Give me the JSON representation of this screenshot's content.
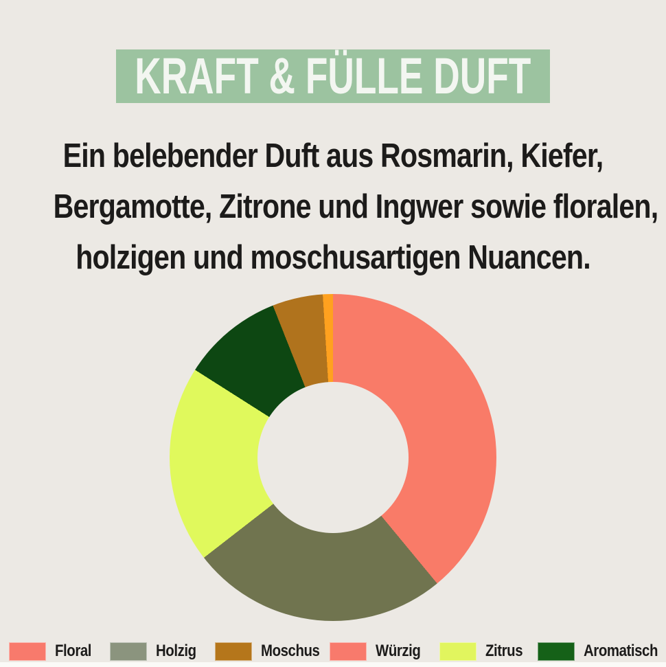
{
  "page": {
    "background": "#ECE9E4",
    "bottom_strip_color": "#FBFAF7",
    "text_color": "#1C1B1A"
  },
  "header": {
    "title": "KRAFT & FÜLLE DUFT",
    "background": "#9CC3A0",
    "text_color": "#F3F6F1"
  },
  "description": {
    "lines": [
      "Ein belebender Duft aus Rosmarin, Kiefer,",
      "Bergamotte, Zitrone und Ingwer sowie floralen,",
      "holzigen und moschusartigen Nuancen."
    ]
  },
  "chart_data": {
    "type": "pie",
    "donut": true,
    "direction": "clockwise",
    "start_angle_deg": 0,
    "inner_radius_ratio": 0.462,
    "title": "",
    "legend_position": "bottom",
    "segments": [
      {
        "label": "Floral",
        "value": 39,
        "color": "#F97B68"
      },
      {
        "label": "Holzig",
        "value": 25.5,
        "color": "#70744F"
      },
      {
        "label": "Zitrus",
        "value": 19.5,
        "color": "#E0F95C"
      },
      {
        "label": "Aromatisch",
        "value": 10,
        "color": "#0D4712"
      },
      {
        "label": "Moschus",
        "value": 5,
        "color": "#B0731D"
      },
      {
        "label": "Würzig",
        "value": 1,
        "color": "#FFA11F"
      }
    ]
  },
  "legend": {
    "items": [
      {
        "label": "Floral",
        "color": "#F87A6C"
      },
      {
        "label": "Holzig",
        "color": "#8B947E"
      },
      {
        "label": "Moschus",
        "color": "#B5761B"
      },
      {
        "label": "Würzig",
        "color": "#F87A6C"
      },
      {
        "label": "Zitrus",
        "color": "#E1F55E"
      },
      {
        "label": "Aromatisch",
        "color": "#156118"
      }
    ]
  }
}
